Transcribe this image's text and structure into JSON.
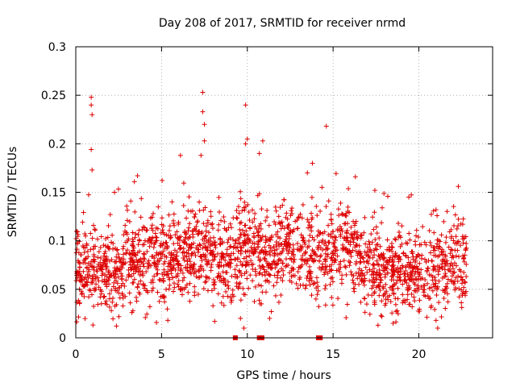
{
  "chart_data": {
    "type": "scatter",
    "title": "Day 208 of 2017, SRMTID for receiver nrmd",
    "xlabel": "GPS time / hours",
    "ylabel": "SRMTID / TECUs",
    "xlim": [
      0,
      24.3
    ],
    "ylim": [
      0,
      0.3
    ],
    "x_ticks": [
      0,
      5,
      10,
      15,
      20
    ],
    "x_tick_labels": [
      "0",
      "5",
      "10",
      "15",
      "20"
    ],
    "y_ticks": [
      0,
      0.05,
      0.1,
      0.15,
      0.2,
      0.25,
      0.3
    ],
    "y_tick_labels": [
      "0",
      "0.05",
      "0.1",
      "0.15",
      "0.2",
      "0.25",
      "0.3"
    ],
    "grid": true,
    "marker": "+",
    "color": "#dd0000",
    "series": [
      {
        "name": "SRMTID",
        "marker": "+",
        "x_range": [
          0.0,
          22.8
        ],
        "baseline_profile": [
          {
            "x": 0,
            "y": 0.065
          },
          {
            "x": 1,
            "y": 0.07
          },
          {
            "x": 2,
            "y": 0.062
          },
          {
            "x": 3,
            "y": 0.075
          },
          {
            "x": 4,
            "y": 0.08
          },
          {
            "x": 5,
            "y": 0.078
          },
          {
            "x": 6,
            "y": 0.082
          },
          {
            "x": 7,
            "y": 0.088
          },
          {
            "x": 8,
            "y": 0.085
          },
          {
            "x": 9,
            "y": 0.08
          },
          {
            "x": 10,
            "y": 0.095
          },
          {
            "x": 11,
            "y": 0.085
          },
          {
            "x": 12,
            "y": 0.09
          },
          {
            "x": 13,
            "y": 0.092
          },
          {
            "x": 14,
            "y": 0.08
          },
          {
            "x": 15,
            "y": 0.09
          },
          {
            "x": 16,
            "y": 0.095
          },
          {
            "x": 17,
            "y": 0.07
          },
          {
            "x": 18,
            "y": 0.065
          },
          {
            "x": 19,
            "y": 0.068
          },
          {
            "x": 20,
            "y": 0.065
          },
          {
            "x": 21,
            "y": 0.07
          },
          {
            "x": 22,
            "y": 0.078
          },
          {
            "x": 22.8,
            "y": 0.072
          }
        ],
        "spread": 0.022,
        "approx_point_count": 2200,
        "notable_points": [
          {
            "x": 0.9,
            "y": 0.248
          },
          {
            "x": 0.9,
            "y": 0.24
          },
          {
            "x": 0.95,
            "y": 0.23
          },
          {
            "x": 0.9,
            "y": 0.194
          },
          {
            "x": 0.95,
            "y": 0.173
          },
          {
            "x": 7.4,
            "y": 0.253
          },
          {
            "x": 7.4,
            "y": 0.233
          },
          {
            "x": 7.5,
            "y": 0.22
          },
          {
            "x": 7.5,
            "y": 0.203
          },
          {
            "x": 7.3,
            "y": 0.188
          },
          {
            "x": 9.9,
            "y": 0.24
          },
          {
            "x": 9.9,
            "y": 0.2
          },
          {
            "x": 10.0,
            "y": 0.205
          },
          {
            "x": 10.9,
            "y": 0.203
          },
          {
            "x": 10.7,
            "y": 0.19
          },
          {
            "x": 6.1,
            "y": 0.188
          },
          {
            "x": 3.6,
            "y": 0.167
          },
          {
            "x": 16.3,
            "y": 0.166
          },
          {
            "x": 13.5,
            "y": 0.17
          },
          {
            "x": 21.0,
            "y": 0.132
          },
          {
            "x": 22.3,
            "y": 0.156
          },
          {
            "x": 21.1,
            "y": 0.01
          },
          {
            "x": 21.0,
            "y": 0.018
          },
          {
            "x": 18.5,
            "y": 0.015
          },
          {
            "x": 9.8,
            "y": 0.01
          },
          {
            "x": 9.6,
            "y": 0.02
          },
          {
            "x": 11.3,
            "y": 0.02
          },
          {
            "x": 11.4,
            "y": 0.027
          },
          {
            "x": 14.0,
            "y": 0.04
          }
        ]
      },
      {
        "name": "zero markers",
        "marker": "square",
        "x": [
          9.3,
          10.7,
          10.85,
          14.15,
          14.25
        ],
        "y": [
          0,
          0,
          0,
          0,
          0
        ]
      }
    ]
  }
}
